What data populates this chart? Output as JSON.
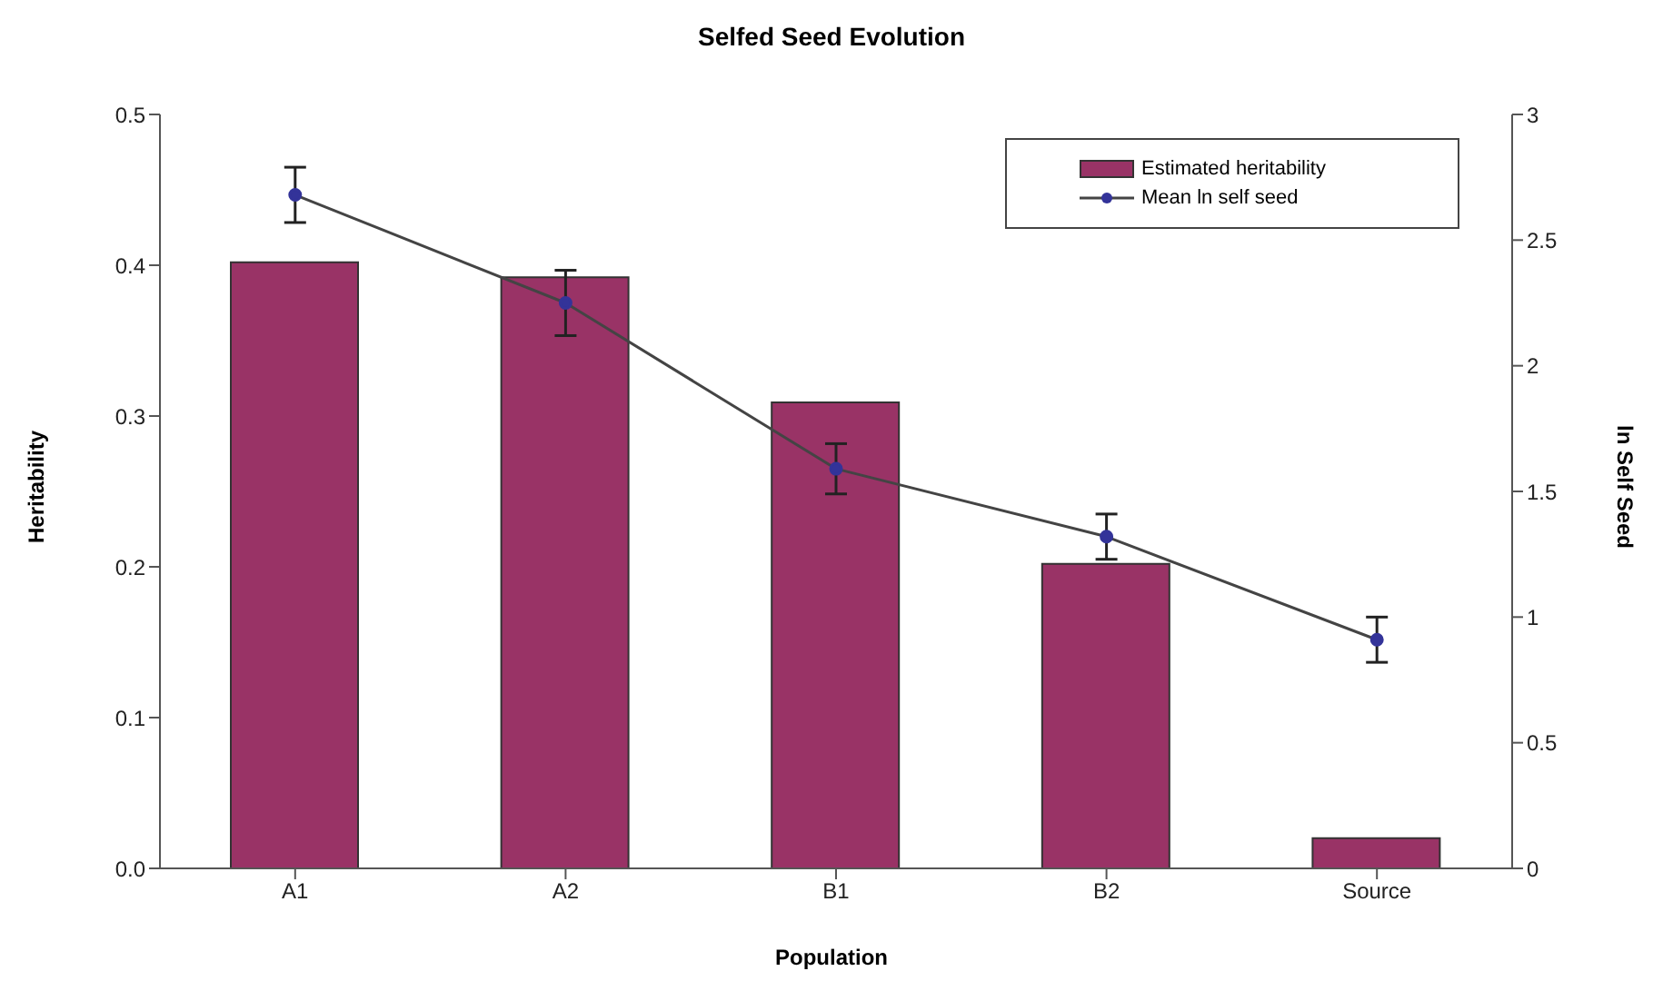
{
  "chart_data": {
    "type": "bar",
    "title": "Selfed Seed Evolution",
    "xlabel": "Population",
    "ylabel": "Heritability",
    "y2label": "ln Self Seed",
    "categories": [
      "A1",
      "A2",
      "B1",
      "B2",
      "Source"
    ],
    "series": [
      {
        "name": "Estimated heritability",
        "color": "#993366",
        "values": [
          0.402,
          0.392,
          0.309,
          0.202,
          0.02
        ]
      },
      {
        "name": "Mean ln self seed",
        "type": "line",
        "axis": "y2",
        "color": "#333399",
        "marker": "circle",
        "values": [
          2.68,
          2.25,
          1.59,
          1.32,
          0.91
        ],
        "errors": [
          0.11,
          0.13,
          0.1,
          0.09,
          0.09
        ]
      }
    ],
    "ylim": [
      0,
      0.5
    ],
    "yticks": [
      {
        "value": 0,
        "label": "0.0"
      },
      0.1,
      0.2,
      0.3,
      0.4,
      0.5
    ],
    "y2lim": [
      0,
      3
    ],
    "y2ticks": [
      0,
      0.5,
      1,
      1.5,
      2,
      2.5,
      3
    ],
    "grid": false,
    "legend": "top right"
  }
}
